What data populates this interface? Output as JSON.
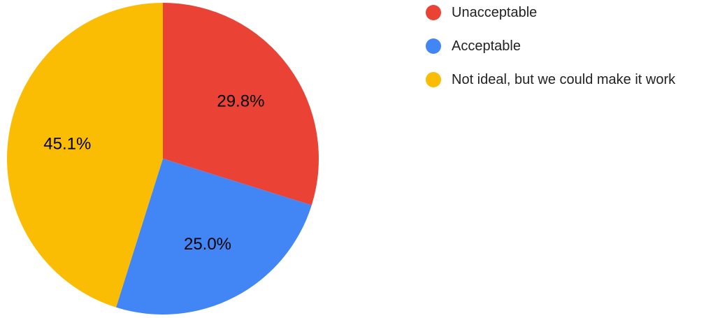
{
  "chart_data": {
    "type": "pie",
    "title": "",
    "legend_position": "right",
    "slices": [
      {
        "label": "Unacceptable",
        "value": 29.8,
        "value_label": "29.8%",
        "color": "#EA4335"
      },
      {
        "label": "Acceptable",
        "value": 25.0,
        "value_label": "25.0%",
        "color": "#4285F4"
      },
      {
        "label": "Not ideal, but we could make it work",
        "value": 45.1,
        "value_label": "45.1%",
        "color": "#FBBC04"
      }
    ]
  }
}
